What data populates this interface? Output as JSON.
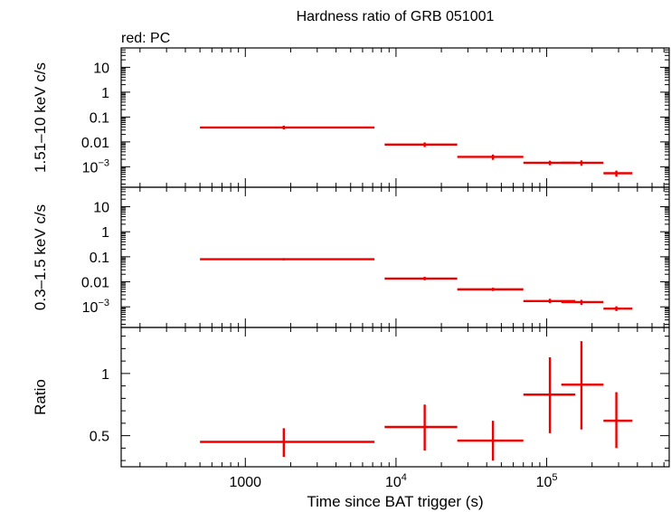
{
  "chart_data": {
    "type": "scatter",
    "title": "Hardness ratio of GRB 051001",
    "legend": "red: PC",
    "legend_placement": "top-left",
    "series_color": "#ee0000",
    "xlabel": "Time since BAT trigger (s)",
    "xscale": "log",
    "xlim": [
      150,
      650000
    ],
    "x_ticks": [
      {
        "value": 1000,
        "label": "1000",
        "sup": ""
      },
      {
        "value": 10000,
        "label": "10",
        "sup": "4"
      },
      {
        "value": 100000,
        "label": "10",
        "sup": "5"
      }
    ],
    "panels": [
      {
        "id": "hard",
        "ylabel": "1.51–10 keV c/s",
        "yscale": "log",
        "ylim": [
          0.00015,
          60
        ],
        "y_ticks": [
          {
            "value": 10,
            "label": "10",
            "sup": ""
          },
          {
            "value": 1,
            "label": "1",
            "sup": ""
          },
          {
            "value": 0.1,
            "label": "0.1",
            "sup": ""
          },
          {
            "value": 0.01,
            "label": "0.01",
            "sup": ""
          },
          {
            "value": 0.001,
            "label": "10",
            "sup": "−3"
          }
        ],
        "points": [
          {
            "x": 1800,
            "xlo": 500,
            "xhi": 7200,
            "y": 0.038,
            "ylo": 0.032,
            "yhi": 0.045
          },
          {
            "x": 15500,
            "xlo": 8400,
            "xhi": 25500,
            "y": 0.0078,
            "ylo": 0.0062,
            "yhi": 0.0095
          },
          {
            "x": 44000,
            "xlo": 25500,
            "xhi": 70000,
            "y": 0.0025,
            "ylo": 0.0019,
            "yhi": 0.0031
          },
          {
            "x": 105000,
            "xlo": 70000,
            "xhi": 155000,
            "y": 0.00145,
            "ylo": 0.00115,
            "yhi": 0.00175
          },
          {
            "x": 170000,
            "xlo": 125000,
            "xhi": 238000,
            "y": 0.00145,
            "ylo": 0.0011,
            "yhi": 0.0018
          },
          {
            "x": 290000,
            "xlo": 238000,
            "xhi": 370000,
            "y": 0.00055,
            "ylo": 0.0004,
            "yhi": 0.0007
          }
        ]
      },
      {
        "id": "soft",
        "ylabel": "0.3–1.5 keV c/s",
        "yscale": "log",
        "ylim": [
          0.00015,
          60
        ],
        "y_ticks": [
          {
            "value": 10,
            "label": "10",
            "sup": ""
          },
          {
            "value": 1,
            "label": "1",
            "sup": ""
          },
          {
            "value": 0.1,
            "label": "0.1",
            "sup": ""
          },
          {
            "value": 0.01,
            "label": "0.01",
            "sup": ""
          },
          {
            "value": 0.001,
            "label": "10",
            "sup": "−3"
          }
        ],
        "points": [
          {
            "x": 1800,
            "xlo": 500,
            "xhi": 7200,
            "y": 0.08,
            "ylo": 0.072,
            "yhi": 0.088
          },
          {
            "x": 15500,
            "xlo": 8400,
            "xhi": 25500,
            "y": 0.0135,
            "ylo": 0.0115,
            "yhi": 0.0158
          },
          {
            "x": 44000,
            "xlo": 25500,
            "xhi": 70000,
            "y": 0.005,
            "ylo": 0.0043,
            "yhi": 0.0058
          },
          {
            "x": 105000,
            "xlo": 70000,
            "xhi": 155000,
            "y": 0.0017,
            "ylo": 0.0014,
            "yhi": 0.0021
          },
          {
            "x": 170000,
            "xlo": 125000,
            "xhi": 238000,
            "y": 0.00155,
            "ylo": 0.0012,
            "yhi": 0.0019
          },
          {
            "x": 290000,
            "xlo": 238000,
            "xhi": 370000,
            "y": 0.00085,
            "ylo": 0.00068,
            "yhi": 0.00105
          }
        ]
      },
      {
        "id": "ratio",
        "ylabel": "Ratio",
        "yscale": "linear",
        "ylim": [
          0.25,
          1.37
        ],
        "y_ticks": [
          {
            "value": 1,
            "label": "1",
            "sup": ""
          },
          {
            "value": 0.5,
            "label": "0.5",
            "sup": ""
          }
        ],
        "y_minor_step": 0.1,
        "points": [
          {
            "x": 1800,
            "xlo": 500,
            "xhi": 7200,
            "y": 0.45,
            "ylo": 0.33,
            "yhi": 0.56
          },
          {
            "x": 15500,
            "xlo": 8400,
            "xhi": 25500,
            "y": 0.57,
            "ylo": 0.38,
            "yhi": 0.75
          },
          {
            "x": 44000,
            "xlo": 25500,
            "xhi": 70000,
            "y": 0.46,
            "ylo": 0.3,
            "yhi": 0.62
          },
          {
            "x": 105000,
            "xlo": 70000,
            "xhi": 155000,
            "y": 0.83,
            "ylo": 0.52,
            "yhi": 1.13
          },
          {
            "x": 170000,
            "xlo": 125000,
            "xhi": 238000,
            "y": 0.91,
            "ylo": 0.55,
            "yhi": 1.26
          },
          {
            "x": 290000,
            "xlo": 238000,
            "xhi": 370000,
            "y": 0.62,
            "ylo": 0.4,
            "yhi": 0.85
          }
        ]
      }
    ]
  }
}
